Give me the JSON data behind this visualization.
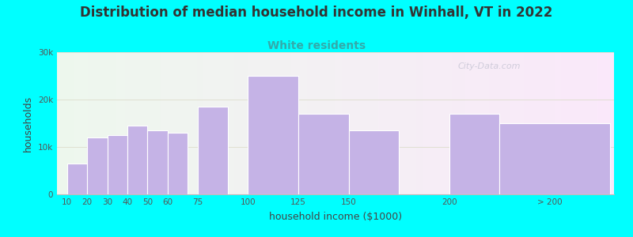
{
  "title": "Distribution of median household income in Winhall, VT in 2022",
  "subtitle": "White residents",
  "xlabel": "household income ($1000)",
  "ylabel": "households",
  "title_fontsize": 12,
  "subtitle_fontsize": 10,
  "subtitle_color": "#33aaaa",
  "title_color": "#333333",
  "bar_color": "#c5b3e6",
  "bar_edgecolor": "#c5b3e6",
  "background_color": "#00ffff",
  "watermark": "City-Data.com",
  "values": [
    6500,
    12000,
    12500,
    14500,
    13500,
    13000,
    18500,
    25000,
    17000,
    13500,
    17000,
    15000
  ],
  "xtick_labels": [
    "10",
    "20",
    "30",
    "40",
    "50",
    "60",
    "75",
    "100",
    "125",
    "150",
    "200",
    "> 200"
  ],
  "xtick_positions": [
    10,
    20,
    30,
    40,
    50,
    60,
    75,
    100,
    125,
    150,
    200,
    250
  ],
  "bar_lefts": [
    10,
    20,
    30,
    40,
    50,
    60,
    75,
    100,
    125,
    150,
    200,
    225
  ],
  "bar_widths": [
    10,
    10,
    10,
    10,
    10,
    10,
    15,
    25,
    25,
    25,
    25,
    55
  ],
  "xlim": [
    5,
    282
  ],
  "ylim": [
    0,
    30000
  ],
  "yticks": [
    0,
    10000,
    20000,
    30000
  ],
  "ytick_labels": [
    "0",
    "10k",
    "20k",
    "30k"
  ]
}
